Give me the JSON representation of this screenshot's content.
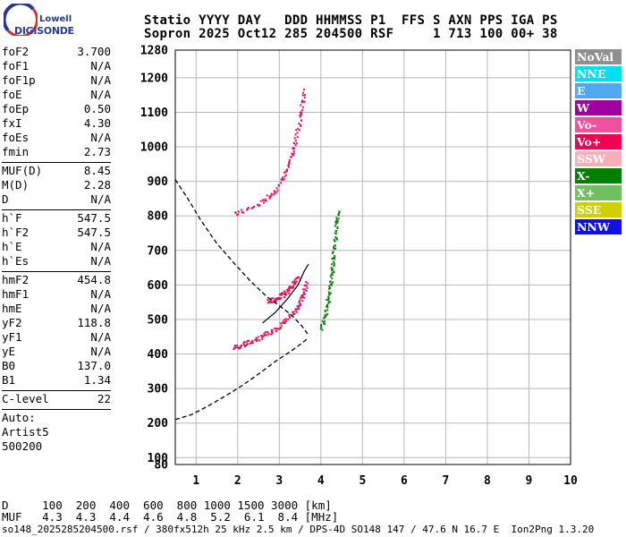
{
  "logo": {
    "line1": "Lowell",
    "line2": "DIGISONDE"
  },
  "header": {
    "line1": "Statio YYYY DAY   DDD HHMMSS P1  FFS S AXN PPS IGA PS",
    "line2": "Sopron 2025 Oct12 285 204500 RSF     1 713 100 00+ 38"
  },
  "params": [
    {
      "label": "foF2",
      "value": "3.700"
    },
    {
      "label": "foF1",
      "value": "N/A"
    },
    {
      "label": "foF1p",
      "value": "N/A"
    },
    {
      "label": "foE",
      "value": "N/A"
    },
    {
      "label": "foEp",
      "value": "0.50"
    },
    {
      "label": "fxI",
      "value": "4.30"
    },
    {
      "label": "foEs",
      "value": "N/A"
    },
    {
      "label": "fmin",
      "value": "2.73"
    },
    {
      "sep": true
    },
    {
      "label": "MUF(D)",
      "value": "8.45"
    },
    {
      "label": "M(D)",
      "value": "2.28"
    },
    {
      "label": "D",
      "value": "N/A"
    },
    {
      "sep": true
    },
    {
      "label": "h`F",
      "value": "547.5"
    },
    {
      "label": "h`F2",
      "value": "547.5"
    },
    {
      "label": "h`E",
      "value": "N/A"
    },
    {
      "label": "h`Es",
      "value": "N/A"
    },
    {
      "sep": true
    },
    {
      "label": "hmF2",
      "value": "454.8"
    },
    {
      "label": "hmF1",
      "value": "N/A"
    },
    {
      "label": "hmE",
      "value": "N/A"
    },
    {
      "label": "yF2",
      "value": "118.8"
    },
    {
      "label": "yF1",
      "value": "N/A"
    },
    {
      "label": "yE",
      "value": "N/A"
    },
    {
      "label": "B0",
      "value": "137.0"
    },
    {
      "label": "B1",
      "value": "1.34"
    },
    {
      "sep": true
    },
    {
      "label": "C-level",
      "value": "22"
    },
    {
      "sep": true
    },
    {
      "text": "Auto:"
    },
    {
      "text": "Artist5"
    },
    {
      "text": "500200"
    }
  ],
  "legend": [
    {
      "label": "NoVal",
      "color": "#909090"
    },
    {
      "label": "NNE",
      "color": "#00e0f0"
    },
    {
      "label": "E",
      "color": "#50a8f0"
    },
    {
      "label": "W",
      "color": "#a000a0"
    },
    {
      "label": "Vo-",
      "color": "#f050a0"
    },
    {
      "label": "Vo+",
      "color": "#f00050"
    },
    {
      "label": "SSW",
      "color": "#f8b0b8"
    },
    {
      "label": "X-",
      "color": "#008000"
    },
    {
      "label": "X+",
      "color": "#70c060"
    },
    {
      "label": "SSE",
      "color": "#d0d000"
    },
    {
      "label": "NNW",
      "color": "#1010e0"
    }
  ],
  "footer": {
    "d_row": "D     100  200  400  600  800 1000 1500 3000 [km]",
    "muf_row": "MUF   4.3  4.3  4.4  4.6  4.8  5.2  6.1  8.4 [MHz]",
    "info": "so148_2025285204500.rsf / 380fx512h 25 kHz 2.5 km / DPS-4D SO148 147 / 47.6 N 16.7 E  Ion2Png 1.3.20"
  },
  "chart_data": {
    "type": "scatter",
    "xlabel": "",
    "ylabel": "",
    "xlim": [
      0.5,
      10.0
    ],
    "ylim": [
      80,
      1280
    ],
    "x_ticks": [
      1,
      2,
      3,
      4,
      5,
      6,
      7,
      8,
      9,
      10
    ],
    "y_ticks": [
      80,
      100,
      200,
      300,
      400,
      500,
      600,
      700,
      800,
      900,
      1000,
      1100,
      1200,
      1280
    ],
    "grid": true,
    "legend_position": "right",
    "traces": [
      {
        "name": "O-trace",
        "color": "#e0105a",
        "points": [
          [
            1.9,
            420
          ],
          [
            2.2,
            432
          ],
          [
            2.5,
            448
          ],
          [
            2.8,
            466
          ],
          [
            3.1,
            492
          ],
          [
            3.4,
            530
          ],
          [
            3.55,
            570
          ],
          [
            3.65,
            612
          ]
        ]
      },
      {
        "name": "O-trace-2hop",
        "color": "#e0105a",
        "points": [
          [
            1.9,
            805
          ],
          [
            2.5,
            835
          ],
          [
            2.9,
            875
          ],
          [
            3.2,
            940
          ],
          [
            3.35,
            1005
          ],
          [
            3.5,
            1090
          ],
          [
            3.6,
            1170
          ]
        ]
      },
      {
        "name": "X-trace",
        "color": "#108010",
        "points": [
          [
            4.0,
            475
          ],
          [
            4.1,
            525
          ],
          [
            4.2,
            580
          ],
          [
            4.25,
            640
          ],
          [
            4.3,
            700
          ],
          [
            4.35,
            760
          ],
          [
            4.4,
            820
          ]
        ]
      },
      {
        "name": "F-layer-spread",
        "color": "#e0105a",
        "points": [
          [
            2.7,
            555
          ],
          [
            2.9,
            560
          ],
          [
            3.1,
            575
          ],
          [
            3.3,
            600
          ],
          [
            3.45,
            625
          ]
        ]
      }
    ],
    "profile_curve": [
      [
        0.5,
        905
      ],
      [
        0.8,
        850
      ],
      [
        1.1,
        790
      ],
      [
        1.5,
        720
      ],
      [
        1.9,
        665
      ],
      [
        2.3,
        612
      ],
      [
        2.7,
        566
      ],
      [
        3.0,
        540
      ],
      [
        3.3,
        512
      ],
      [
        3.55,
        480
      ],
      [
        3.7,
        455
      ]
    ],
    "underlying_curve": [
      [
        0.5,
        210
      ],
      [
        0.9,
        225
      ],
      [
        1.3,
        250
      ],
      [
        1.7,
        278
      ],
      [
        2.1,
        308
      ],
      [
        2.5,
        342
      ],
      [
        2.9,
        378
      ],
      [
        3.3,
        410
      ],
      [
        3.55,
        432
      ],
      [
        3.7,
        447
      ]
    ],
    "upper_line": [
      [
        2.6,
        490
      ],
      [
        2.9,
        520
      ],
      [
        3.2,
        560
      ],
      [
        3.45,
        600
      ],
      [
        3.6,
        640
      ],
      [
        3.7,
        660
      ]
    ]
  }
}
